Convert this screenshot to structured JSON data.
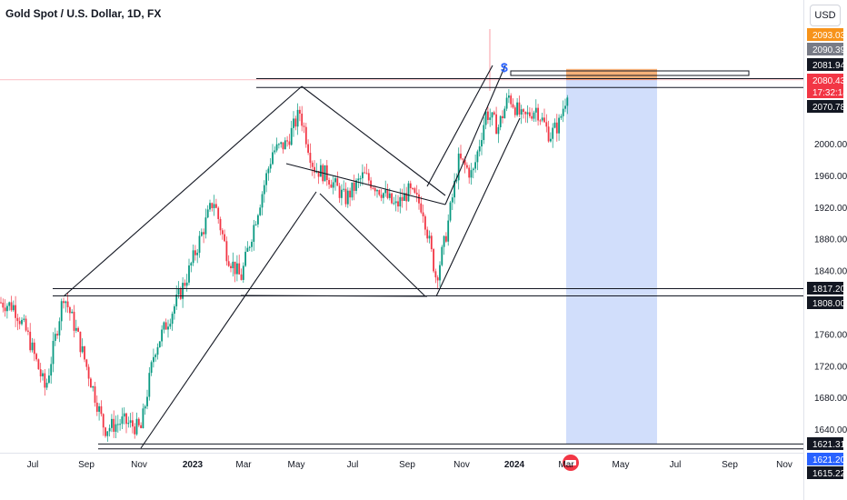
{
  "header": {
    "title": "Gold Spot / U.S. Dollar, 1D, FX",
    "currency_label": "USD"
  },
  "chart_data": {
    "type": "candlestick",
    "title": "Gold Spot / U.S. Dollar, 1D, FX",
    "y_axis": {
      "range": [
        1610,
        2110
      ],
      "ticks": [
        2000.0,
        1960.0,
        1920.0,
        1880.0,
        1840.0,
        1760.0,
        1720.0,
        1680.0,
        1640.0
      ]
    },
    "x_axis": {
      "labels": [
        "Jul",
        "Sep",
        "Nov",
        "2023",
        "Mar",
        "May",
        "Jul",
        "Sep",
        "Nov",
        "2024",
        "Mar",
        "May",
        "Jul",
        "Sep",
        "Nov"
      ]
    },
    "price_tags": [
      {
        "value": "2093.03",
        "color": "#f7931a"
      },
      {
        "value": "2090.39",
        "color": "#787b86"
      },
      {
        "value": "2081.94",
        "color": "#131722"
      },
      {
        "value": "2080.43",
        "color": "#f23645"
      },
      {
        "value": "17:32:14",
        "color": "#f23645"
      },
      {
        "value": "2070.78",
        "color": "#131722"
      },
      {
        "value": "1817.20",
        "color": "#131722"
      },
      {
        "value": "1808.00",
        "color": "#131722"
      },
      {
        "value": "1621.31",
        "color": "#131722"
      },
      {
        "value": "1621.20",
        "color": "#2962ff"
      },
      {
        "value": "1615.22",
        "color": "#131722"
      }
    ],
    "horizontal_levels": [
      2081.94,
      2070.78,
      1817.2,
      1808.0,
      1621.31,
      1615.22
    ],
    "long_position": {
      "entry": 2080.43,
      "target": 2093.03,
      "stop": 1621.2
    },
    "grid": false,
    "colors": {
      "up": "#089981",
      "down": "#f23645",
      "zone": "#cfdcfb"
    }
  }
}
